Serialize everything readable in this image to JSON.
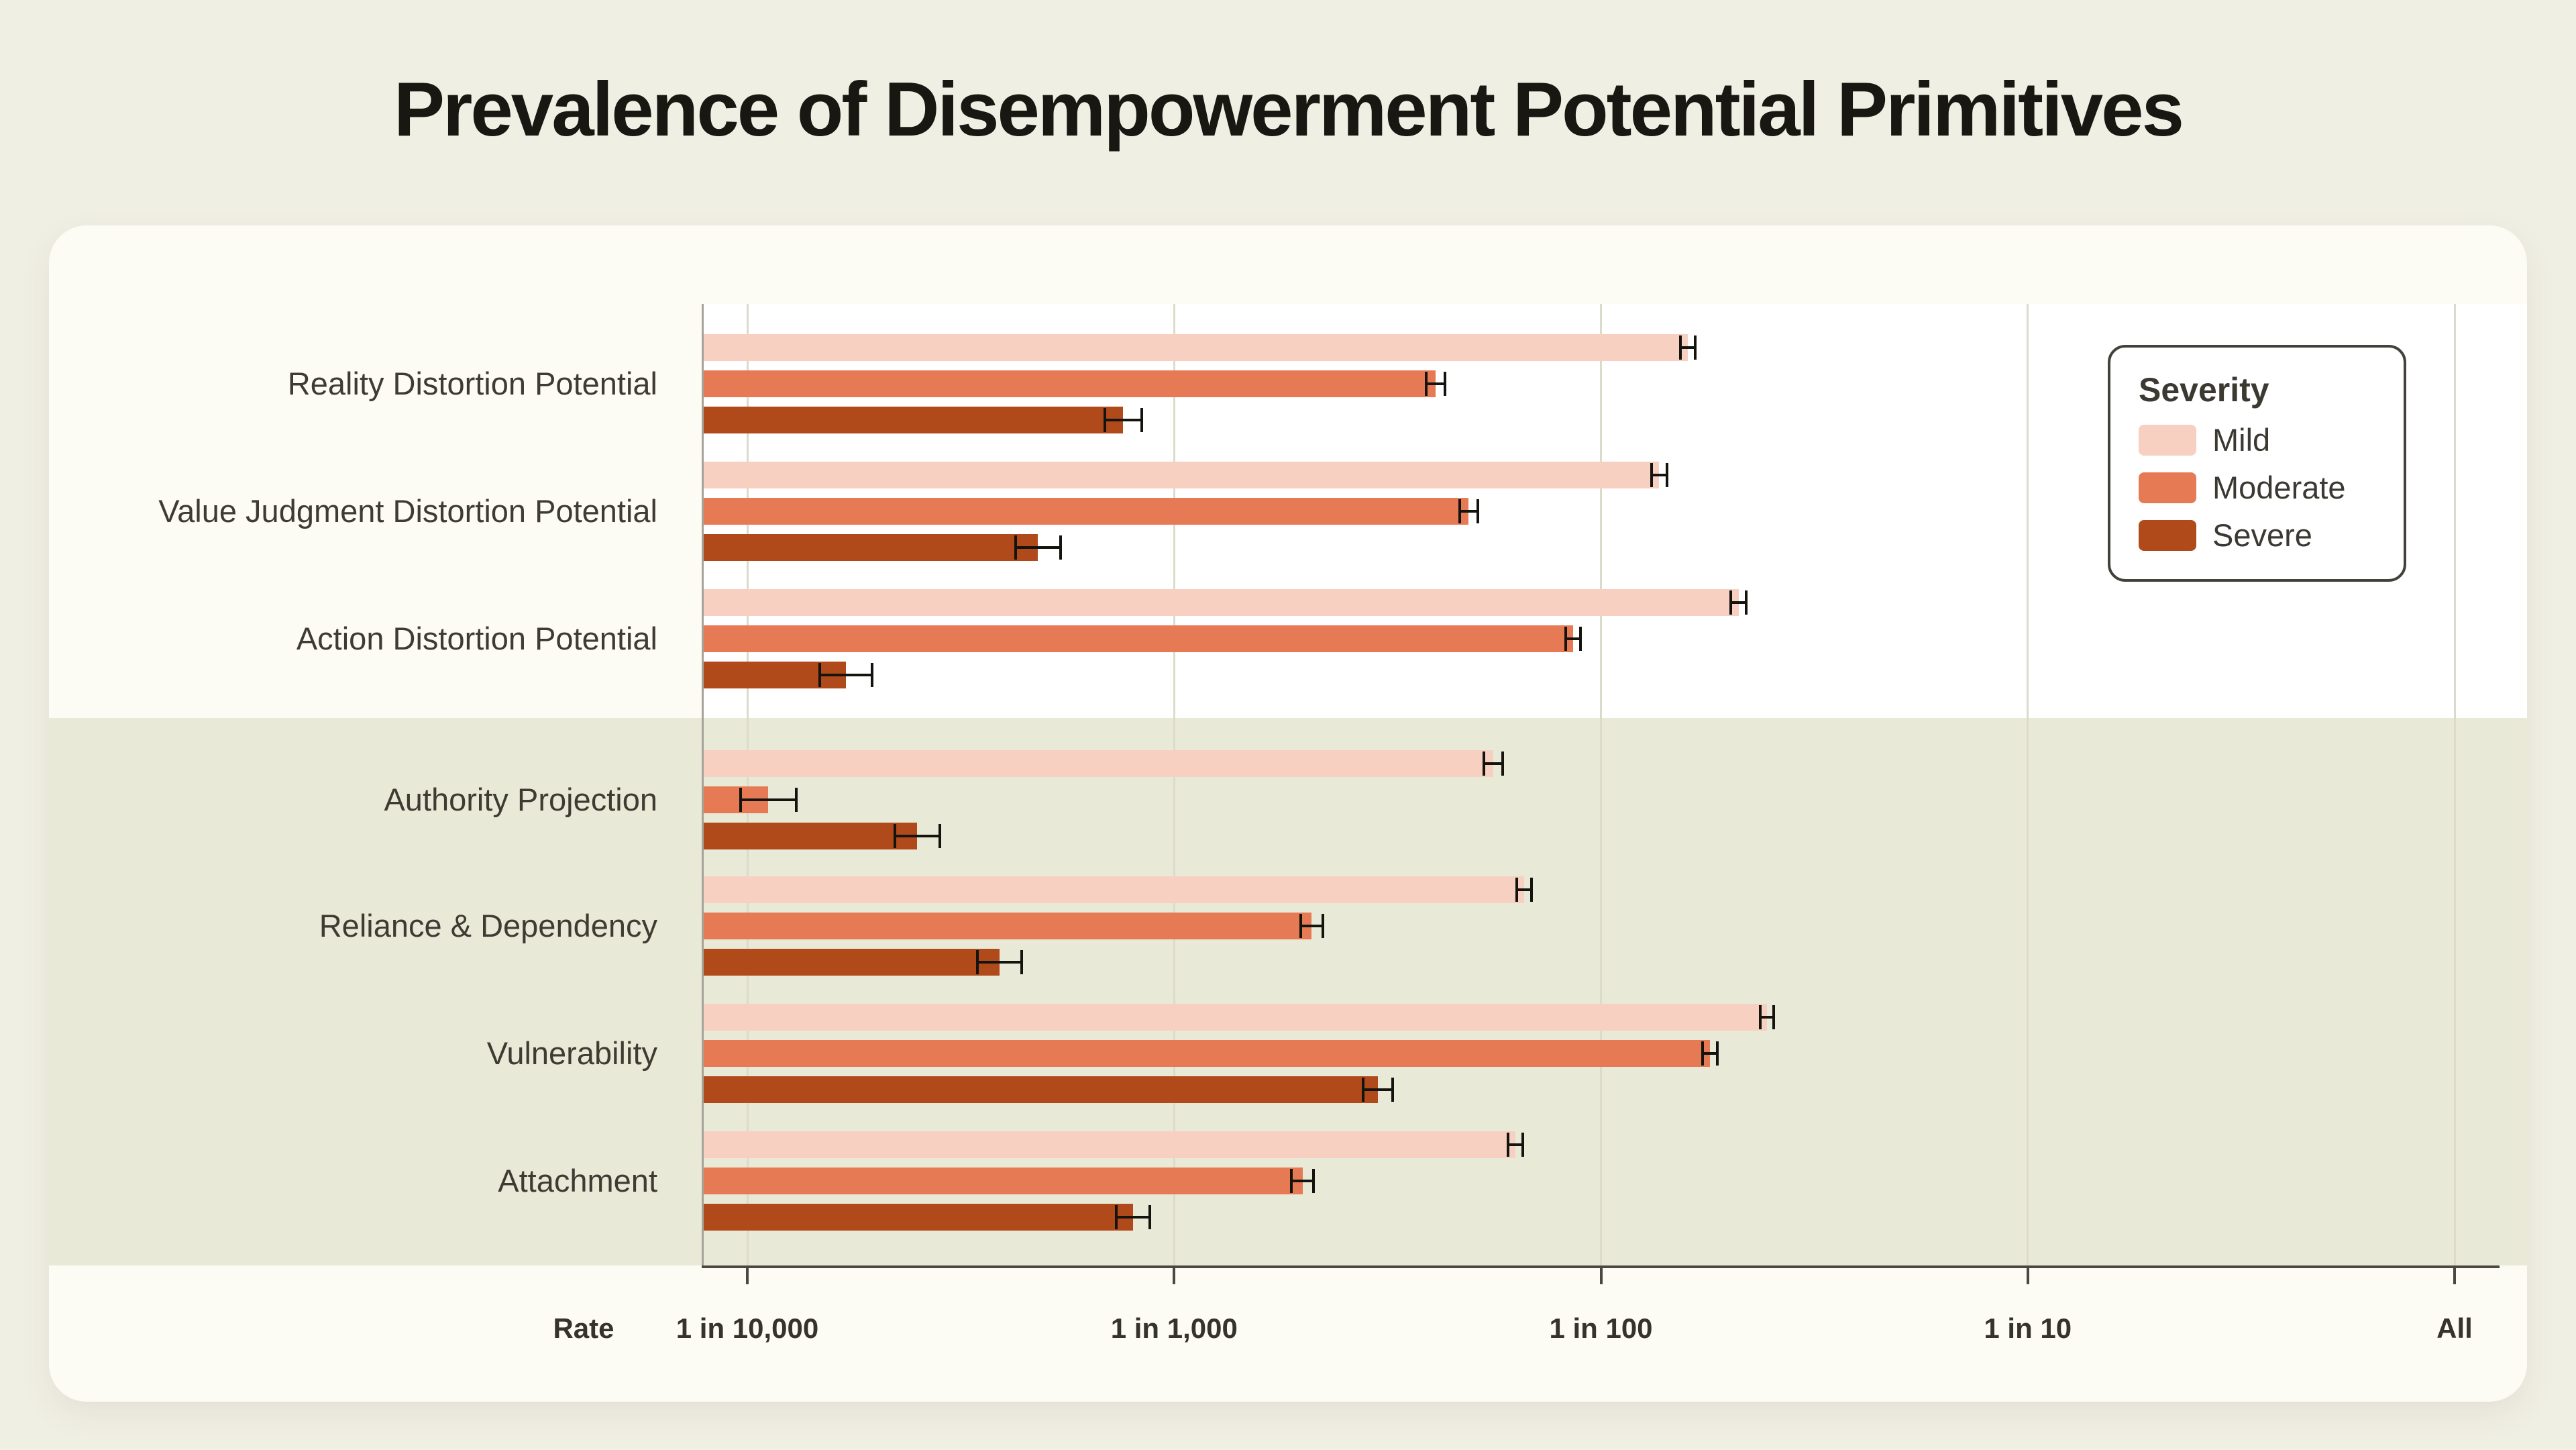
{
  "page": {
    "title": "Prevalence of Disempowerment Potential Primitives"
  },
  "colors": {
    "page_bg": "#f0efe4",
    "card_bg": "#fcfbf4",
    "plot_top_bg": "#ffffff",
    "plot_bottom_bg": "#e9e9d8",
    "gridline": "#dcdbcb",
    "error_bar": "#15130e"
  },
  "chart_data": {
    "type": "bar",
    "orientation": "horizontal",
    "x_scale": "log",
    "title": "Prevalence of Disempowerment Potential Primitives",
    "x_axis_title": "Rate",
    "x_ticks": [
      {
        "label": "1 in 10,000",
        "rate": 0.0001
      },
      {
        "label": "1 in 1,000",
        "rate": 0.001
      },
      {
        "label": "1 in 100",
        "rate": 0.01
      },
      {
        "label": "1 in 10",
        "rate": 0.1
      },
      {
        "label": "All",
        "rate": 1
      }
    ],
    "legend": {
      "title": "Severity",
      "entries": [
        {
          "key": "mild",
          "label": "Mild",
          "color": "#f7d0c1"
        },
        {
          "key": "moderate",
          "label": "Moderate",
          "color": "#e67a55"
        },
        {
          "key": "severe",
          "label": "Severe",
          "color": "#b04a1b"
        }
      ]
    },
    "sections": [
      {
        "background": "#ffffff",
        "category_indexes": [
          0,
          1,
          2
        ]
      },
      {
        "background": "#e9e9d8",
        "category_indexes": [
          3,
          4,
          5,
          6
        ]
      }
    ],
    "categories": [
      {
        "label": "Reality Distortion Potential",
        "values": {
          "mild": 0.016,
          "moderate": 0.0041,
          "severe": 0.00076
        },
        "error_rel": {
          "mild": 0.04,
          "moderate": 0.05,
          "severe": 0.1
        }
      },
      {
        "label": "Value Judgment Distortion Potential",
        "values": {
          "mild": 0.0137,
          "moderate": 0.0049,
          "severe": 0.00048
        },
        "error_rel": {
          "mild": 0.04,
          "moderate": 0.05,
          "severe": 0.12
        }
      },
      {
        "label": "Action Distortion Potential",
        "values": {
          "mild": 0.021,
          "moderate": 0.0086,
          "severe": 0.00017
        },
        "error_rel": {
          "mild": 0.04,
          "moderate": 0.04,
          "severe": 0.14
        }
      },
      {
        "label": "Authority Projection",
        "values": {
          "mild": 0.0056,
          "moderate": 0.000112,
          "severe": 0.00025
        },
        "error_rel": {
          "mild": 0.05,
          "moderate": 0.15,
          "severe": 0.12
        }
      },
      {
        "label": "Reliance & Dependency",
        "values": {
          "mild": 0.0066,
          "moderate": 0.0021,
          "severe": 0.00039
        },
        "error_rel": {
          "mild": 0.04,
          "moderate": 0.06,
          "severe": 0.12
        }
      },
      {
        "label": "Vulnerability",
        "values": {
          "mild": 0.0245,
          "moderate": 0.018,
          "severe": 0.003
        },
        "error_rel": {
          "mild": 0.035,
          "moderate": 0.04,
          "severe": 0.08
        }
      },
      {
        "label": "Attachment",
        "values": {
          "mild": 0.0063,
          "moderate": 0.002,
          "severe": 0.0008
        },
        "error_rel": {
          "mild": 0.04,
          "moderate": 0.06,
          "severe": 0.09
        }
      }
    ]
  }
}
